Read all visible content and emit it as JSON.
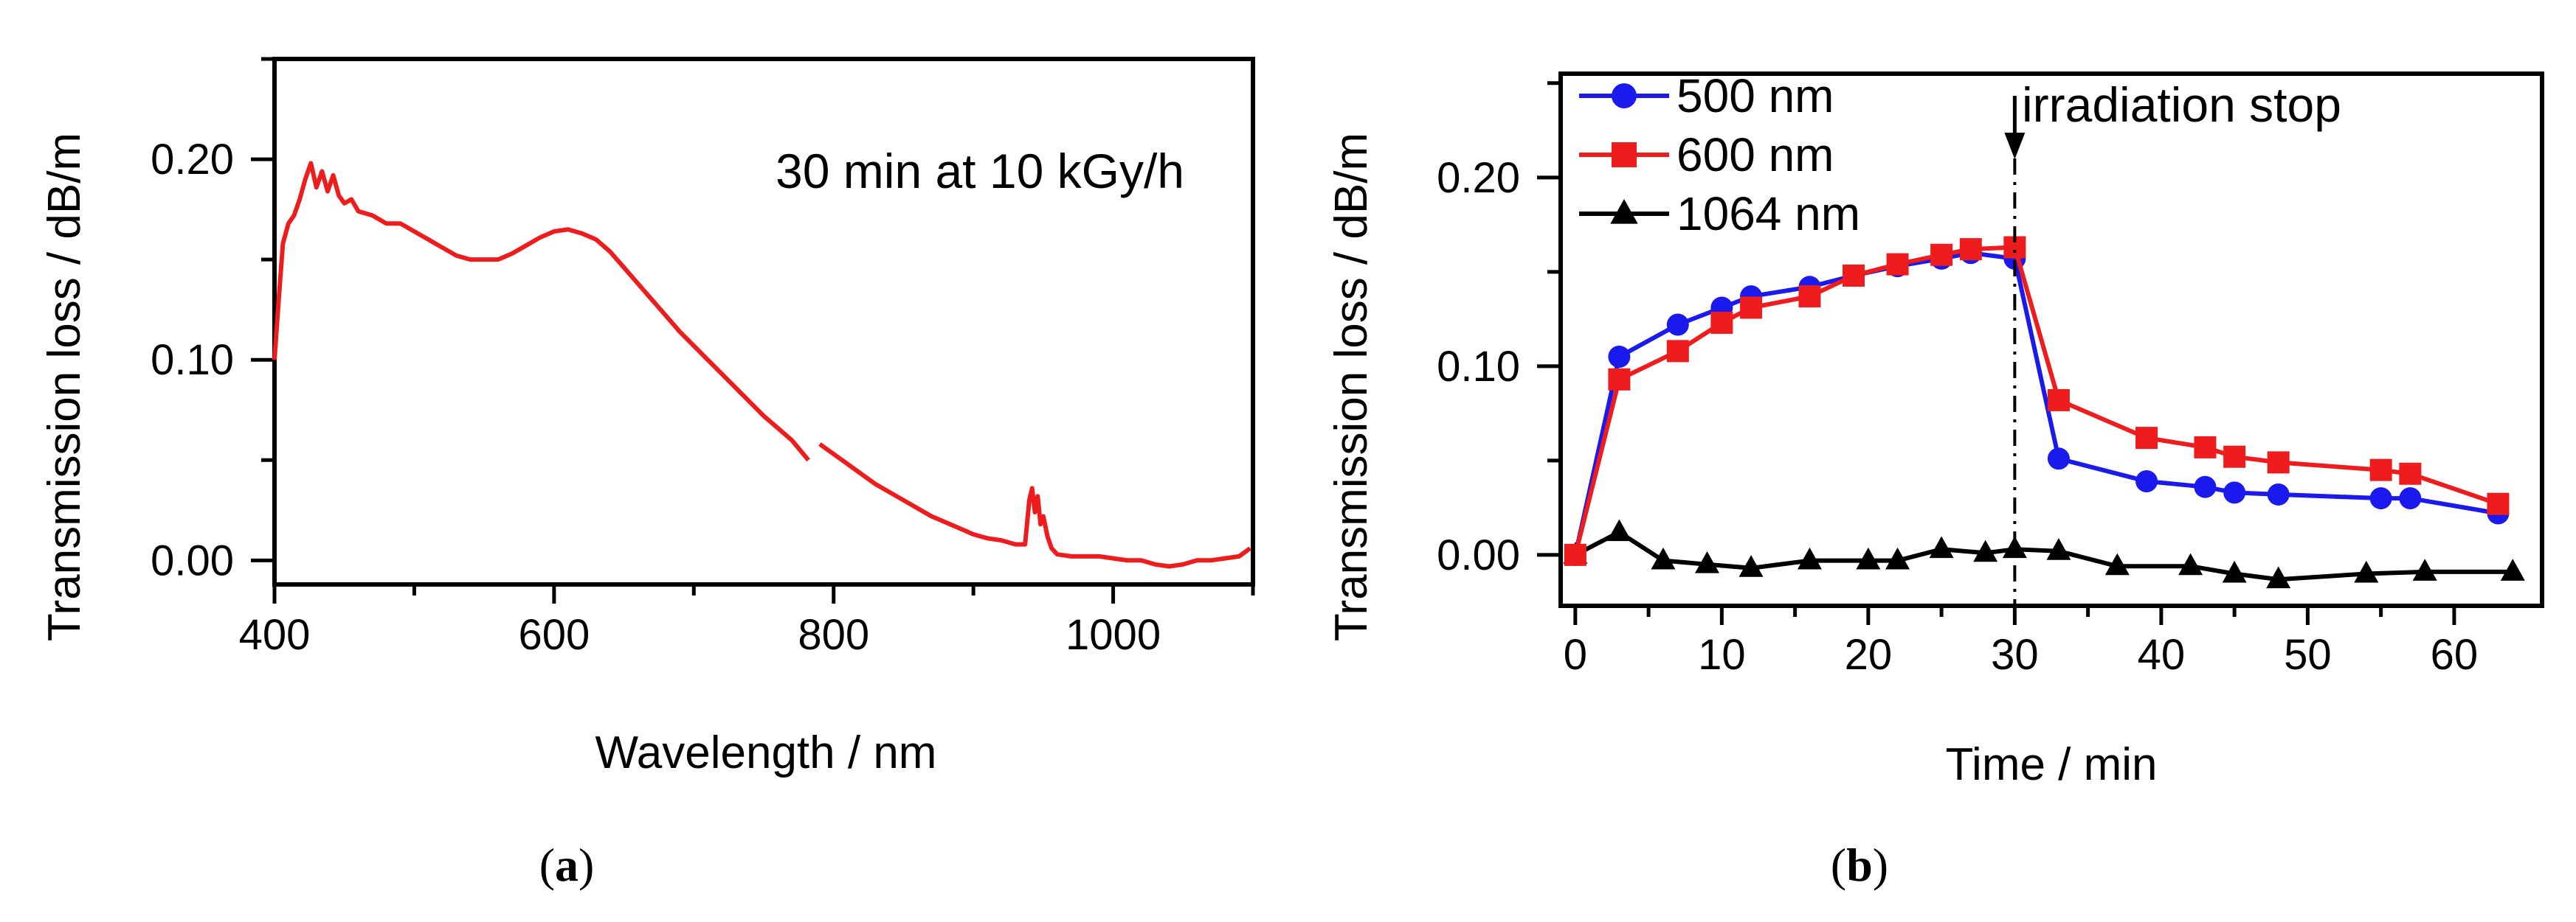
{
  "chart_data": [
    {
      "panel": "a",
      "panel_label": "a",
      "type": "line",
      "xlabel": "Wavelength / nm",
      "ylabel": "Transmission loss / dB/m",
      "xlim": [
        400,
        1100
      ],
      "ylim": [
        -0.012,
        0.25
      ],
      "x_ticks": [
        400,
        600,
        800,
        1000
      ],
      "x_tick_labels": [
        "400",
        "600",
        "800",
        "1000"
      ],
      "x_minor_ticks": [
        500,
        700,
        900,
        1100
      ],
      "y_ticks": [
        0.0,
        0.1,
        0.2
      ],
      "y_tick_labels": [
        "0.00",
        "0.10",
        "0.20"
      ],
      "y_minor_ticks": [
        0.05,
        0.15,
        0.25
      ],
      "annotation": "30 min at 10 kGy/h",
      "series": [
        {
          "name": "30 min at 10 kGy/h",
          "color": "#ee1c1c",
          "segments": [
            [
              [
                400,
                0.1
              ],
              [
                403,
                0.13
              ],
              [
                406,
                0.158
              ],
              [
                410,
                0.168
              ],
              [
                414,
                0.172
              ],
              [
                418,
                0.18
              ],
              [
                422,
                0.19
              ],
              [
                426,
                0.198
              ],
              [
                430,
                0.186
              ],
              [
                434,
                0.194
              ],
              [
                438,
                0.184
              ],
              [
                442,
                0.192
              ],
              [
                446,
                0.182
              ],
              [
                450,
                0.178
              ],
              [
                455,
                0.18
              ],
              [
                460,
                0.174
              ],
              [
                470,
                0.172
              ],
              [
                480,
                0.168
              ],
              [
                490,
                0.168
              ],
              [
                500,
                0.164
              ],
              [
                510,
                0.16
              ],
              [
                520,
                0.156
              ],
              [
                530,
                0.152
              ],
              [
                540,
                0.15
              ],
              [
                550,
                0.15
              ],
              [
                560,
                0.15
              ],
              [
                570,
                0.153
              ],
              [
                580,
                0.157
              ],
              [
                590,
                0.161
              ],
              [
                600,
                0.164
              ],
              [
                610,
                0.165
              ],
              [
                620,
                0.163
              ],
              [
                630,
                0.16
              ],
              [
                640,
                0.154
              ],
              [
                650,
                0.146
              ],
              [
                660,
                0.138
              ],
              [
                670,
                0.13
              ],
              [
                680,
                0.122
              ],
              [
                690,
                0.114
              ],
              [
                700,
                0.107
              ],
              [
                710,
                0.1
              ],
              [
                720,
                0.093
              ],
              [
                730,
                0.086
              ],
              [
                740,
                0.079
              ],
              [
                750,
                0.072
              ],
              [
                760,
                0.066
              ],
              [
                770,
                0.06
              ],
              [
                782,
                0.05
              ]
            ],
            [
              [
                790,
                0.058
              ],
              [
                800,
                0.053
              ],
              [
                810,
                0.048
              ],
              [
                820,
                0.043
              ],
              [
                830,
                0.038
              ],
              [
                840,
                0.034
              ],
              [
                850,
                0.03
              ],
              [
                860,
                0.026
              ],
              [
                870,
                0.022
              ],
              [
                880,
                0.019
              ],
              [
                890,
                0.016
              ],
              [
                900,
                0.013
              ],
              [
                910,
                0.011
              ],
              [
                920,
                0.01
              ],
              [
                930,
                0.008
              ],
              [
                937,
                0.008
              ],
              [
                940,
                0.03
              ],
              [
                942,
                0.036
              ],
              [
                944,
                0.024
              ],
              [
                946,
                0.032
              ],
              [
                948,
                0.018
              ],
              [
                950,
                0.022
              ],
              [
                953,
                0.012
              ],
              [
                956,
                0.006
              ],
              [
                960,
                0.003
              ],
              [
                970,
                0.002
              ],
              [
                980,
                0.002
              ],
              [
                990,
                0.002
              ],
              [
                1000,
                0.001
              ],
              [
                1010,
                0.0
              ],
              [
                1020,
                0.0
              ],
              [
                1030,
                -0.002
              ],
              [
                1040,
                -0.003
              ],
              [
                1050,
                -0.002
              ],
              [
                1060,
                0.0
              ],
              [
                1070,
                0.0
              ],
              [
                1080,
                0.001
              ],
              [
                1090,
                0.002
              ],
              [
                1098,
                0.006
              ]
            ]
          ]
        }
      ]
    },
    {
      "panel": "b",
      "panel_label": "b",
      "type": "line",
      "xlabel": "Time / min",
      "ylabel": "Transmission loss / dB/m",
      "xlim": [
        -1,
        66
      ],
      "ylim": [
        -0.027,
        0.255
      ],
      "x_ticks": [
        0,
        10,
        20,
        30,
        40,
        50,
        60
      ],
      "x_tick_labels": [
        "0",
        "10",
        "20",
        "30",
        "40",
        "50",
        "60"
      ],
      "x_minor_ticks": [
        5,
        15,
        25,
        35,
        45,
        55
      ],
      "y_ticks": [
        0.0,
        0.1,
        0.2
      ],
      "y_tick_labels": [
        "0.00",
        "0.10",
        "0.20"
      ],
      "y_minor_ticks": [
        0.05,
        0.15,
        0.25
      ],
      "annotation": "irradiation stop",
      "annotation_x": 30,
      "legend": [
        "500 nm",
        "600 nm",
        "1064 nm"
      ],
      "series": [
        {
          "name": "500 nm",
          "color": "#1a1aee",
          "marker": "circle",
          "x": [
            0,
            3,
            7,
            10,
            12,
            16,
            19,
            22,
            25,
            27,
            30,
            33,
            39,
            43,
            45,
            48,
            55,
            57,
            63
          ],
          "y": [
            0.0,
            0.105,
            0.122,
            0.131,
            0.137,
            0.142,
            0.148,
            0.153,
            0.157,
            0.16,
            0.157,
            0.051,
            0.039,
            0.036,
            0.033,
            0.032,
            0.03,
            0.03,
            0.022
          ]
        },
        {
          "name": "600 nm",
          "color": "#ee1c1c",
          "marker": "square",
          "x": [
            0,
            3,
            7,
            10,
            12,
            16,
            19,
            22,
            25,
            27,
            30,
            33,
            39,
            43,
            45,
            48,
            55,
            57,
            63
          ],
          "y": [
            0.0,
            0.093,
            0.108,
            0.123,
            0.131,
            0.137,
            0.148,
            0.154,
            0.159,
            0.162,
            0.163,
            0.082,
            0.062,
            0.057,
            0.052,
            0.049,
            0.045,
            0.043,
            0.027
          ]
        },
        {
          "name": "1064 nm",
          "color": "#000000",
          "marker": "triangle",
          "x": [
            0,
            3,
            6,
            9,
            12,
            16,
            20,
            22,
            25,
            28,
            30,
            33,
            37,
            42,
            45,
            48,
            54,
            58,
            64
          ],
          "y": [
            0.0,
            0.012,
            -0.003,
            -0.005,
            -0.007,
            -0.003,
            -0.003,
            -0.003,
            0.003,
            0.001,
            0.003,
            0.002,
            -0.006,
            -0.006,
            -0.01,
            -0.013,
            -0.01,
            -0.009,
            -0.009
          ]
        }
      ]
    }
  ]
}
